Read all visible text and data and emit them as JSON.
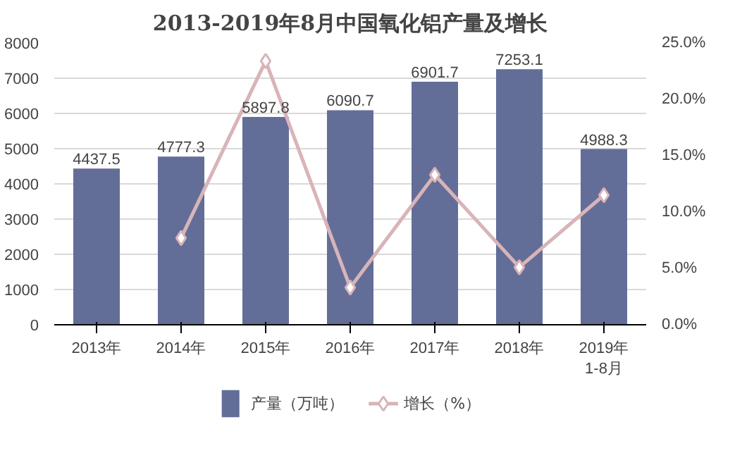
{
  "chart_data": {
    "type": "bar",
    "title": "2013-2019年8月中国氧化铝产量及增长",
    "categories": [
      "2013年",
      "2014年",
      "2015年",
      "2016年",
      "2017年",
      "2018年",
      "2019年\n1-8月"
    ],
    "series": [
      {
        "name": "产量（万吨）",
        "color": "#636e98",
        "values": [
          4437.5,
          4777.3,
          5897.8,
          6090.7,
          6901.7,
          7253.1,
          4988.3
        ],
        "value_labels": [
          "4437.5",
          "4777.3",
          "5897.8",
          "6090.7",
          "6901.7",
          "7253.1",
          "4988.3"
        ]
      },
      {
        "name": "增长（%）",
        "type": "line",
        "axis": "y2",
        "color": "#d8b4b8",
        "marker": "diamond",
        "values": [
          null,
          7.7,
          23.4,
          3.3,
          13.3,
          5.1,
          11.5
        ]
      }
    ],
    "ylim": [
      0,
      8000
    ],
    "yticks": [
      0,
      1000,
      2000,
      3000,
      4000,
      5000,
      6000,
      7000,
      8000
    ],
    "y2lim": [
      0,
      25
    ],
    "y2ticks": [
      {
        "value": 0,
        "label": "0.0%"
      },
      {
        "value": 5,
        "label": "5.0%"
      },
      {
        "value": 10,
        "label": "10.0%"
      },
      {
        "value": 15,
        "label": "15.0%"
      },
      {
        "value": 20,
        "label": "20.0%"
      },
      {
        "value": 25,
        "label": "25.0%"
      }
    ],
    "grid": "y",
    "legend": "bottom"
  }
}
